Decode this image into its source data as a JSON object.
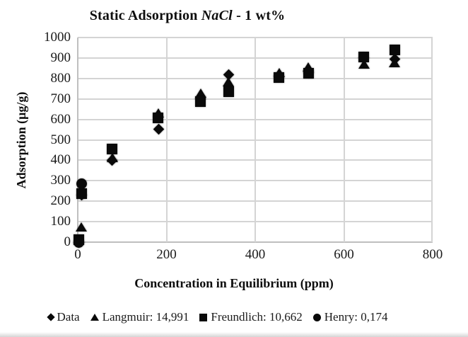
{
  "title": {
    "part1": "Static Adsorption ",
    "part2": "NaCl",
    "part3": " - 1 wt%"
  },
  "axes": {
    "x": {
      "label": "Concentration in Equilibrium (ppm)",
      "min": 0,
      "max": 800,
      "ticks": [
        0,
        200,
        400,
        600,
        800
      ]
    },
    "y": {
      "label": "Adsorption (μg/g)",
      "min": 0,
      "max": 1000,
      "ticks": [
        0,
        100,
        200,
        300,
        400,
        500,
        600,
        700,
        800,
        900,
        1000
      ]
    }
  },
  "legend": {
    "items": [
      {
        "marker": "diamond",
        "label": "Data"
      },
      {
        "marker": "triangle",
        "label": "Langmuir: 14,991"
      },
      {
        "marker": "square",
        "label": "Freundlich: 10,662"
      },
      {
        "marker": "circle",
        "label": "Henry: 0,174"
      }
    ]
  },
  "chart_data": {
    "type": "scatter",
    "title": "Static Adsorption NaCl - 1 wt%",
    "xlabel": "Concentration in Equilibrium (ppm)",
    "ylabel": "Adsorption (μg/g)",
    "xlim": [
      0,
      800
    ],
    "ylim": [
      0,
      1000
    ],
    "x_gridlines": [
      200,
      400,
      600,
      800
    ],
    "y_gridline_step": 100,
    "grid": true,
    "legend_position": "bottom",
    "marker_color": "#0a0a0a",
    "series": [
      {
        "name": "Data",
        "marker": "diamond",
        "points": [
          [
            2,
            0
          ],
          [
            9,
            230
          ],
          [
            78,
            398
          ],
          [
            183,
            551
          ],
          [
            277,
            700
          ],
          [
            340,
            818
          ],
          [
            454,
            810
          ],
          [
            520,
            830
          ],
          [
            645,
            900
          ],
          [
            714,
            893
          ]
        ]
      },
      {
        "name": "Langmuir: 14,991",
        "marker": "triangle",
        "points": [
          [
            8,
            75
          ],
          [
            78,
            415
          ],
          [
            181,
            630
          ],
          [
            277,
            728
          ],
          [
            340,
            784
          ],
          [
            454,
            827
          ],
          [
            520,
            855
          ],
          [
            645,
            870
          ],
          [
            714,
            878
          ]
        ]
      },
      {
        "name": "Freundlich: 10,662",
        "marker": "square",
        "points": [
          [
            3,
            12
          ],
          [
            9,
            238
          ],
          [
            78,
            455
          ],
          [
            181,
            607
          ],
          [
            277,
            688
          ],
          [
            340,
            735
          ],
          [
            454,
            806
          ],
          [
            520,
            825
          ],
          [
            645,
            905
          ],
          [
            714,
            938
          ]
        ]
      },
      {
        "name": "Henry: 0,174",
        "marker": "circle",
        "points": [
          [
            3,
            0
          ],
          [
            8,
            285
          ]
        ]
      }
    ]
  }
}
